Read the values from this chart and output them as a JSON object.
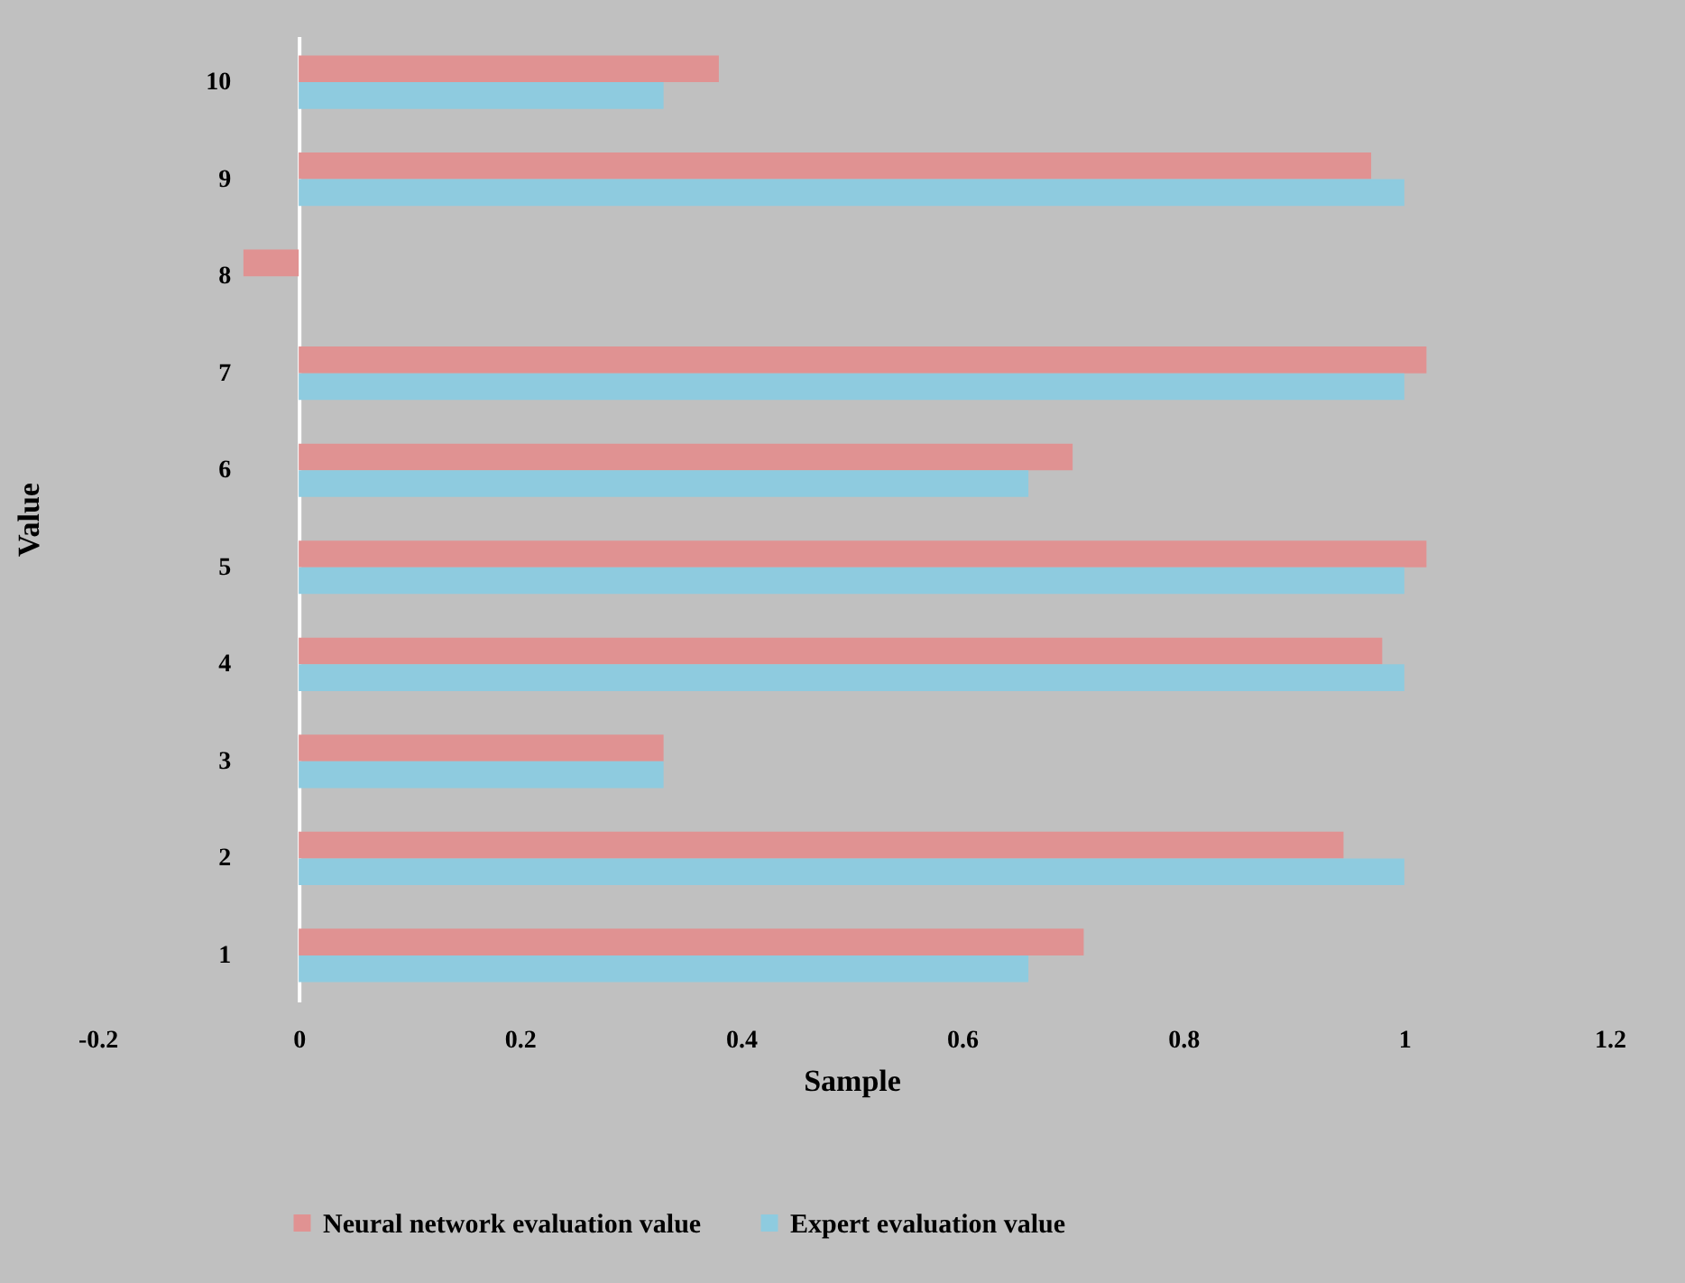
{
  "chart_data": {
    "type": "bar",
    "orientation": "horizontal",
    "xlabel": "Sample",
    "ylabel": "Value",
    "categories": [
      "10",
      "9",
      "8",
      "7",
      "6",
      "5",
      "4",
      "3",
      "2",
      "1"
    ],
    "series": [
      {
        "name": "Neural network evaluation value",
        "color": "#e09292",
        "values": [
          0.38,
          0.97,
          -0.05,
          1.02,
          0.7,
          1.02,
          0.98,
          0.33,
          0.945,
          0.71
        ]
      },
      {
        "name": "Expert evaluation value",
        "color": "#8ecbdf",
        "values": [
          0.33,
          1.0,
          0,
          1.0,
          0.66,
          1.0,
          1.0,
          0.33,
          1.0,
          0.66
        ]
      }
    ],
    "xlim": [
      -0.2,
      1.2
    ],
    "xticks": [
      -0.2,
      0,
      0.2,
      0.4,
      0.6,
      0.8,
      1,
      1.2
    ],
    "legend": "bottom"
  }
}
